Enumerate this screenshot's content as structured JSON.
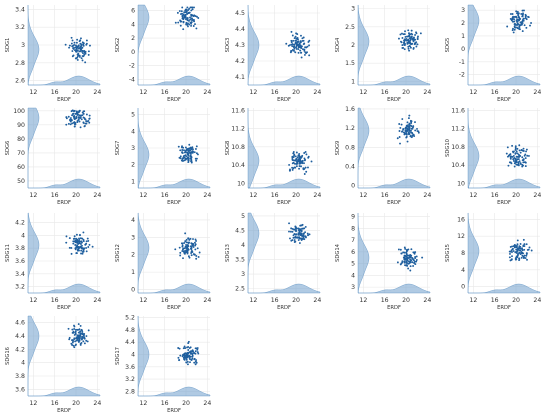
{
  "colors": {
    "point": "#1f5f9e",
    "marginal": "#6f9fcc",
    "grid": "#e8e8e8",
    "text": "#333333"
  },
  "chart_data": [
    {
      "type": "scatter",
      "xlabel": "ERDF",
      "ylabel": "SDG1",
      "xlim": [
        11,
        24.5
      ],
      "ylim": [
        2.55,
        3.45
      ],
      "xticks": [
        12,
        16,
        20,
        24
      ],
      "yticks": [
        2.6,
        2.8,
        3.0,
        3.2,
        3.4
      ],
      "marginal_peak_y": 2.95,
      "marginal_peak_x": 20.5
    },
    {
      "type": "scatter",
      "xlabel": "ERDF",
      "ylabel": "SDG2",
      "xlim": [
        11,
        24.5
      ],
      "ylim": [
        -4.8,
        6.8
      ],
      "xticks": [
        12,
        16,
        20,
        24
      ],
      "yticks": [
        -4,
        -2,
        0,
        2,
        4,
        6
      ],
      "marginal_peak_y": 5.0,
      "marginal_peak_x": 20.5
    },
    {
      "type": "scatter",
      "xlabel": "ERDF",
      "ylabel": "SDG3",
      "xlim": [
        11,
        24.5
      ],
      "ylim": [
        4.05,
        4.55
      ],
      "xticks": [
        12,
        16,
        20,
        24
      ],
      "yticks": [
        4.1,
        4.2,
        4.3,
        4.4,
        4.5
      ],
      "marginal_peak_y": 4.3,
      "marginal_peak_x": 20.5
    },
    {
      "type": "scatter",
      "xlabel": "ERDF",
      "ylabel": "SDG4",
      "xlim": [
        11,
        24.5
      ],
      "ylim": [
        0.9,
        3.1
      ],
      "xticks": [
        12,
        16,
        20,
        24
      ],
      "yticks": [
        1.0,
        1.5,
        2.0,
        2.5,
        3.0
      ],
      "marginal_peak_y": 2.1,
      "marginal_peak_x": 20.5
    },
    {
      "type": "scatter",
      "xlabel": "ERDF",
      "ylabel": "SDG5",
      "xlim": [
        11,
        24.5
      ],
      "ylim": [
        -2.8,
        3.4
      ],
      "xticks": [
        12,
        16,
        20,
        24
      ],
      "yticks": [
        -2,
        -1,
        0,
        1,
        2,
        3
      ],
      "marginal_peak_y": 2.2,
      "marginal_peak_x": 20.5
    },
    {
      "type": "scatter",
      "xlabel": "ERDF",
      "ylabel": "SDG6",
      "xlim": [
        11,
        24.5
      ],
      "ylim": [
        45,
        102
      ],
      "xticks": [
        12,
        16,
        20,
        24
      ],
      "yticks": [
        50,
        60,
        70,
        80,
        90,
        100
      ],
      "marginal_peak_y": 95,
      "marginal_peak_x": 20.5
    },
    {
      "type": "scatter",
      "xlabel": "ERDF",
      "ylabel": "SDG7",
      "xlim": [
        11,
        24.5
      ],
      "ylim": [
        0.6,
        5.4
      ],
      "xticks": [
        12,
        16,
        20,
        24
      ],
      "yticks": [
        1,
        2,
        3,
        4,
        5
      ],
      "marginal_peak_y": 2.6,
      "marginal_peak_x": 20.5
    },
    {
      "type": "scatter",
      "xlabel": "ERDF",
      "ylabel": "SDG8",
      "xlim": [
        11,
        24.5
      ],
      "ylim": [
        9.9,
        11.65
      ],
      "xticks": [
        12,
        16,
        20,
        24
      ],
      "yticks": [
        10.0,
        10.4,
        10.8,
        11.2,
        11.6
      ],
      "marginal_peak_y": 10.5,
      "marginal_peak_x": 20.5
    },
    {
      "type": "scatter",
      "xlabel": "ERDF",
      "ylabel": "SDG9",
      "xlim": [
        11,
        24.5
      ],
      "ylim": [
        -0.05,
        1.62
      ],
      "xticks": [
        12,
        16,
        20,
        24
      ],
      "yticks": [
        0.0,
        0.4,
        0.8,
        1.2,
        1.6
      ],
      "marginal_peak_y": 1.15,
      "marginal_peak_x": 20.5
    },
    {
      "type": "scatter",
      "xlabel": "ERDF",
      "ylabel": "SDG10",
      "xlim": [
        11,
        24.5
      ],
      "ylim": [
        9.9,
        11.65
      ],
      "xticks": [
        12,
        16,
        20,
        24
      ],
      "yticks": [
        10.0,
        10.4,
        10.8,
        11.2,
        11.6
      ],
      "marginal_peak_y": 10.6,
      "marginal_peak_x": 20.5
    },
    {
      "type": "scatter",
      "xlabel": "ERDF",
      "ylabel": "SDG11",
      "xlim": [
        11,
        24.5
      ],
      "ylim": [
        3.1,
        4.35
      ],
      "xticks": [
        12,
        16,
        20,
        24
      ],
      "yticks": [
        3.2,
        3.4,
        3.6,
        3.8,
        4.0,
        4.2
      ],
      "marginal_peak_y": 3.85,
      "marginal_peak_x": 20.5
    },
    {
      "type": "scatter",
      "xlabel": "ERDF",
      "ylabel": "SDG12",
      "xlim": [
        11,
        24.5
      ],
      "ylim": [
        -0.2,
        4.4
      ],
      "xticks": [
        12,
        16,
        20,
        24
      ],
      "yticks": [
        0,
        1,
        2,
        3,
        4
      ],
      "marginal_peak_y": 2.4,
      "marginal_peak_x": 20.5
    },
    {
      "type": "scatter",
      "xlabel": "ERDF",
      "ylabel": "SDG13",
      "xlim": [
        11,
        24.5
      ],
      "ylim": [
        2.35,
        5.1
      ],
      "xticks": [
        12,
        16,
        20,
        24
      ],
      "yticks": [
        2.5,
        3.0,
        3.5,
        4.0,
        4.5,
        5.0
      ],
      "marginal_peak_y": 4.4,
      "marginal_peak_x": 20.5
    },
    {
      "type": "scatter",
      "xlabel": "ERDF",
      "ylabel": "SDG14",
      "xlim": [
        11,
        24.5
      ],
      "ylim": [
        2.5,
        9.3
      ],
      "xticks": [
        12,
        16,
        20,
        24
      ],
      "yticks": [
        3,
        4,
        5,
        6,
        7,
        8,
        9
      ],
      "marginal_peak_y": 5.5,
      "marginal_peak_x": 20.5
    },
    {
      "type": "scatter",
      "xlabel": "ERDF",
      "ylabel": "SDG15",
      "xlim": [
        11,
        24.5
      ],
      "ylim": [
        -1.5,
        17.5
      ],
      "xticks": [
        12,
        16,
        20,
        24
      ],
      "yticks": [
        0,
        4,
        8,
        12,
        16
      ],
      "marginal_peak_y": 8.5,
      "marginal_peak_x": 20.5
    },
    {
      "type": "scatter",
      "xlabel": "ERDF",
      "ylabel": "SDG16",
      "xlim": [
        11,
        24.5
      ],
      "ylim": [
        3.5,
        4.7
      ],
      "xticks": [
        12,
        16,
        20,
        24
      ],
      "yticks": [
        3.6,
        3.8,
        4.0,
        4.2,
        4.4,
        4.6
      ],
      "marginal_peak_y": 4.4,
      "marginal_peak_x": 20.5
    },
    {
      "type": "scatter",
      "xlabel": "ERDF",
      "ylabel": "SDG17",
      "xlim": [
        11,
        24.5
      ],
      "ylim": [
        2.65,
        5.25
      ],
      "xticks": [
        12,
        16,
        20,
        24
      ],
      "yticks": [
        2.8,
        3.2,
        3.6,
        4.0,
        4.4,
        4.8,
        5.2
      ],
      "marginal_peak_y": 4.0,
      "marginal_peak_x": 20.5
    }
  ]
}
